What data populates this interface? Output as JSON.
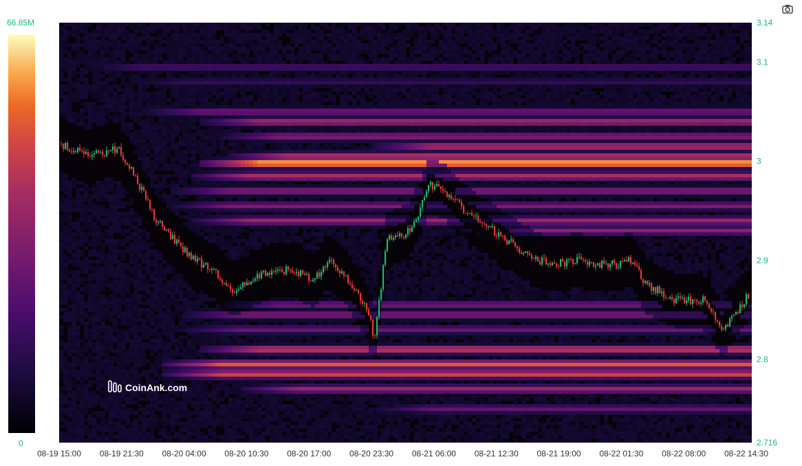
{
  "toolbar": {
    "camera_icon": "camera-icon"
  },
  "watermark": {
    "text": "CoinAnk.com",
    "icon": "coinank-logo-icon"
  },
  "colors": {
    "accent": "#22b573",
    "candle_up": "#22b573",
    "candle_down": "#e53935",
    "heat_low": "#000004",
    "heat_high": "#fcfdbf"
  },
  "chart_data": {
    "type": "heatmap",
    "title": "",
    "xlabel": "",
    "ylabel": "",
    "x_ticks": [
      "08-19 15:00",
      "08-19 21:30",
      "08-20 04:00",
      "08-20 10:30",
      "08-20 17:00",
      "08-20 23:30",
      "08-21 06:00",
      "08-21 12:30",
      "08-21 19:00",
      "08-22 01:30",
      "08-22 08:00",
      "08-22 14:30"
    ],
    "y_ticks": [
      "3.14",
      "3.1",
      "3",
      "2.9",
      "2.8",
      "2.716"
    ],
    "ylim": [
      2.716,
      3.14
    ],
    "colorbar": {
      "min_label": "0",
      "max_label": "66.85M",
      "min": 0,
      "max": 66.85,
      "unit": "M"
    },
    "grid": false,
    "legend": "colorbar-left",
    "price_path": [
      {
        "t": "08-19 15:00",
        "price": 3.018
      },
      {
        "t": "08-19 18:00",
        "price": 3.005
      },
      {
        "t": "08-19 21:00",
        "price": 3.013
      },
      {
        "t": "08-19 22:30",
        "price": 2.99
      },
      {
        "t": "08-20 01:00",
        "price": 2.94
      },
      {
        "t": "08-20 03:00",
        "price": 2.92
      },
      {
        "t": "08-20 05:00",
        "price": 2.9
      },
      {
        "t": "08-20 07:00",
        "price": 2.89
      },
      {
        "t": "08-20 09:00",
        "price": 2.87
      },
      {
        "t": "08-20 11:00",
        "price": 2.88
      },
      {
        "t": "08-20 13:00",
        "price": 2.89
      },
      {
        "t": "08-20 15:30",
        "price": 2.89
      },
      {
        "t": "08-20 17:30",
        "price": 2.88
      },
      {
        "t": "08-20 19:00",
        "price": 2.9
      },
      {
        "t": "08-20 21:00",
        "price": 2.88
      },
      {
        "t": "08-20 23:00",
        "price": 2.85
      },
      {
        "t": "08-20 23:45",
        "price": 2.82
      },
      {
        "t": "08-21 01:00",
        "price": 2.92
      },
      {
        "t": "08-21 03:30",
        "price": 2.93
      },
      {
        "t": "08-21 05:30",
        "price": 2.975
      },
      {
        "t": "08-21 07:00",
        "price": 2.97
      },
      {
        "t": "08-21 09:00",
        "price": 2.95
      },
      {
        "t": "08-21 12:00",
        "price": 2.93
      },
      {
        "t": "08-21 15:00",
        "price": 2.91
      },
      {
        "t": "08-21 18:00",
        "price": 2.895
      },
      {
        "t": "08-21 21:00",
        "price": 2.9
      },
      {
        "t": "08-22 00:00",
        "price": 2.895
      },
      {
        "t": "08-22 02:30",
        "price": 2.9
      },
      {
        "t": "08-22 04:00",
        "price": 2.875
      },
      {
        "t": "08-22 07:00",
        "price": 2.86
      },
      {
        "t": "08-22 10:00",
        "price": 2.86
      },
      {
        "t": "08-22 12:00",
        "price": 2.83
      },
      {
        "t": "08-22 15:00",
        "price": 2.87
      }
    ],
    "liquidity_bands": [
      {
        "price": 3.095,
        "start": "08-19 18:00",
        "level": 0.28
      },
      {
        "price": 3.08,
        "start": "08-19 22:00",
        "level": 0.22
      },
      {
        "price": 3.05,
        "start": "08-20 00:00",
        "level": 0.42
      },
      {
        "price": 3.04,
        "start": "08-20 06:00",
        "level": 0.58
      },
      {
        "price": 3.025,
        "start": "08-20 08:00",
        "level": 0.48
      },
      {
        "price": 3.015,
        "start": "08-21 00:00",
        "level": 0.62
      },
      {
        "price": 3.005,
        "start": "08-20 09:00",
        "level": 0.66
      },
      {
        "price": 2.998,
        "start": "08-20 06:00",
        "level": 0.98
      },
      {
        "price": 2.985,
        "start": "08-20 05:00",
        "level": 0.62
      },
      {
        "price": 2.97,
        "start": "08-20 03:00",
        "level": 0.48
      },
      {
        "price": 2.955,
        "start": "08-20 03:00",
        "level": 0.45
      },
      {
        "price": 2.94,
        "start": "08-20 05:00",
        "level": 0.55
      },
      {
        "price": 2.93,
        "start": "08-21 09:00",
        "level": 0.5
      },
      {
        "price": 2.855,
        "start": "08-20 08:00",
        "level": 0.42
      },
      {
        "price": 2.845,
        "start": "08-20 04:00",
        "level": 0.46
      },
      {
        "price": 2.83,
        "start": "08-20 04:00",
        "level": 0.4
      },
      {
        "price": 2.81,
        "start": "08-20 06:00",
        "level": 0.68
      },
      {
        "price": 2.795,
        "start": "08-20 02:00",
        "level": 0.78
      },
      {
        "price": 2.785,
        "start": "08-20 02:00",
        "level": 0.72
      },
      {
        "price": 2.77,
        "start": "08-20 10:00",
        "level": 0.55
      },
      {
        "price": 2.75,
        "start": "08-21 00:00",
        "level": 0.38
      }
    ]
  }
}
